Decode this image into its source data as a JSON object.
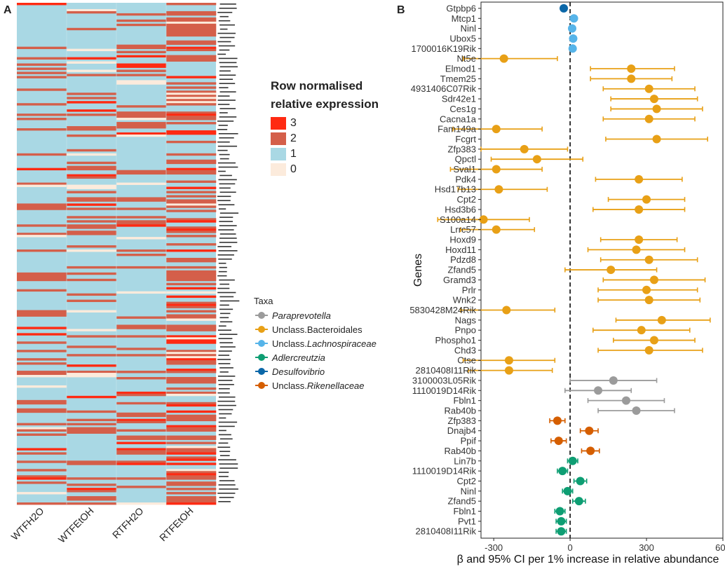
{
  "panels": {
    "a_label": "A",
    "b_label": "B"
  },
  "heatmap": {
    "columns": [
      "WTFH2O",
      "WTFEtOH",
      "RTFH2O",
      "RTFEtOH"
    ],
    "legend_title_line1": "Row normalised",
    "legend_title_line2": "relative expression",
    "legend": [
      {
        "label": "3",
        "color": "#ff2a12"
      },
      {
        "label": "2",
        "color": "#d45f4a"
      },
      {
        "label": "1",
        "color": "#a9d8e4"
      },
      {
        "label": "0",
        "color": "#fcebdc"
      }
    ]
  },
  "taxa_legend": {
    "title": "Taxa",
    "items": [
      {
        "prefix": "",
        "name": "Paraprevotella",
        "italic": true,
        "color": "#9b9b9b"
      },
      {
        "prefix": "",
        "name": "Unclass.Bacteroidales",
        "italic": false,
        "color": "#e8a016"
      },
      {
        "prefix": "Unclass.",
        "name": "Lachnospiraceae",
        "italic": true,
        "color": "#56b4e9"
      },
      {
        "prefix": "",
        "name": "Adlercreutzia",
        "italic": true,
        "color": "#0e9e73"
      },
      {
        "prefix": "",
        "name": "Desulfovibrio",
        "italic": true,
        "color": "#0b67a8"
      },
      {
        "prefix": "Unclass.",
        "name": "Rikenellaceae",
        "italic": true,
        "color": "#d55e00"
      }
    ]
  },
  "chart_data": {
    "type": "scatter",
    "title": "",
    "xlabel": "β and 95% CI per 1% increase in relative abundance",
    "ylabel": "Genes",
    "xlim": [
      -350,
      600
    ],
    "xticks": [
      -300,
      0,
      300,
      600
    ],
    "reference_line": 0,
    "taxa_colors": {
      "Paraprevotella": "#9b9b9b",
      "Unclass.Bacteroidales": "#e8a016",
      "Unclass.Lachnospiraceae": "#56b4e9",
      "Adlercreutzia": "#0e9e73",
      "Desulfovibrio": "#0b67a8",
      "Unclass.Rikenellaceae": "#d55e00"
    },
    "points": [
      {
        "gene": "Gtpbp6",
        "taxon": "Desulfovibrio",
        "beta": -25,
        "lo": -30,
        "hi": -20
      },
      {
        "gene": "Mtcp1",
        "taxon": "Unclass.Lachnospiraceae",
        "beta": 15,
        "lo": 10,
        "hi": 20
      },
      {
        "gene": "Ninl",
        "taxon": "Unclass.Lachnospiraceae",
        "beta": 8,
        "lo": 3,
        "hi": 13
      },
      {
        "gene": "Ubox5",
        "taxon": "Unclass.Lachnospiraceae",
        "beta": 12,
        "lo": 7,
        "hi": 17
      },
      {
        "gene": "1700016K19Rik",
        "taxon": "Unclass.Lachnospiraceae",
        "beta": 10,
        "lo": 5,
        "hi": 15
      },
      {
        "gene": "Nt5e",
        "taxon": "Unclass.Bacteroidales",
        "beta": -260,
        "lo": -420,
        "hi": -50
      },
      {
        "gene": "Elmod1",
        "taxon": "Unclass.Bacteroidales",
        "beta": 240,
        "lo": 80,
        "hi": 410
      },
      {
        "gene": "Tmem25",
        "taxon": "Unclass.Bacteroidales",
        "beta": 240,
        "lo": 80,
        "hi": 400
      },
      {
        "gene": "4931406C07Rik",
        "taxon": "Unclass.Bacteroidales",
        "beta": 310,
        "lo": 130,
        "hi": 490
      },
      {
        "gene": "Sdr42e1",
        "taxon": "Unclass.Bacteroidales",
        "beta": 330,
        "lo": 160,
        "hi": 500
      },
      {
        "gene": "Ces1g",
        "taxon": "Unclass.Bacteroidales",
        "beta": 340,
        "lo": 160,
        "hi": 520
      },
      {
        "gene": "Cacna1a",
        "taxon": "Unclass.Bacteroidales",
        "beta": 310,
        "lo": 130,
        "hi": 490
      },
      {
        "gene": "Fam149a",
        "taxon": "Unclass.Bacteroidales",
        "beta": -290,
        "lo": -460,
        "hi": -110
      },
      {
        "gene": "Fcgrt",
        "taxon": "Unclass.Bacteroidales",
        "beta": 340,
        "lo": 140,
        "hi": 540
      },
      {
        "gene": "Zfp383",
        "taxon": "Unclass.Bacteroidales",
        "beta": -180,
        "lo": -350,
        "hi": -10
      },
      {
        "gene": "Qpctl",
        "taxon": "Unclass.Bacteroidales",
        "beta": -130,
        "lo": -310,
        "hi": 50
      },
      {
        "gene": "Sval1",
        "taxon": "Unclass.Bacteroidales",
        "beta": -290,
        "lo": -470,
        "hi": -110
      },
      {
        "gene": "Pdk4",
        "taxon": "Unclass.Bacteroidales",
        "beta": 270,
        "lo": 100,
        "hi": 440
      },
      {
        "gene": "Hsd17b13",
        "taxon": "Unclass.Bacteroidales",
        "beta": -280,
        "lo": -440,
        "hi": -90
      },
      {
        "gene": "Cpt2",
        "taxon": "Unclass.Bacteroidales",
        "beta": 300,
        "lo": 150,
        "hi": 450
      },
      {
        "gene": "Hsd3b6",
        "taxon": "Unclass.Bacteroidales",
        "beta": 270,
        "lo": 90,
        "hi": 450
      },
      {
        "gene": "S100a14",
        "taxon": "Unclass.Bacteroidales",
        "beta": -340,
        "lo": -520,
        "hi": -160
      },
      {
        "gene": "Lrrc57",
        "taxon": "Unclass.Bacteroidales",
        "beta": -290,
        "lo": -430,
        "hi": -140
      },
      {
        "gene": "Hoxd9",
        "taxon": "Unclass.Bacteroidales",
        "beta": 270,
        "lo": 120,
        "hi": 420
      },
      {
        "gene": "Hoxd11",
        "taxon": "Unclass.Bacteroidales",
        "beta": 260,
        "lo": 70,
        "hi": 450
      },
      {
        "gene": "Pdzd8",
        "taxon": "Unclass.Bacteroidales",
        "beta": 310,
        "lo": 120,
        "hi": 500
      },
      {
        "gene": "Zfand5",
        "taxon": "Unclass.Bacteroidales",
        "beta": 160,
        "lo": -20,
        "hi": 340
      },
      {
        "gene": "Gramd3",
        "taxon": "Unclass.Bacteroidales",
        "beta": 330,
        "lo": 130,
        "hi": 530
      },
      {
        "gene": "Prlr",
        "taxon": "Unclass.Bacteroidales",
        "beta": 300,
        "lo": 110,
        "hi": 500
      },
      {
        "gene": "Wnk2",
        "taxon": "Unclass.Bacteroidales",
        "beta": 310,
        "lo": 110,
        "hi": 510
      },
      {
        "gene": "5830428M24Rik",
        "taxon": "Unclass.Bacteroidales",
        "beta": -250,
        "lo": -430,
        "hi": -60
      },
      {
        "gene": "Nags",
        "taxon": "Unclass.Bacteroidales",
        "beta": 360,
        "lo": 180,
        "hi": 550
      },
      {
        "gene": "Pnpo",
        "taxon": "Unclass.Bacteroidales",
        "beta": 280,
        "lo": 90,
        "hi": 470
      },
      {
        "gene": "Phospho1",
        "taxon": "Unclass.Bacteroidales",
        "beta": 330,
        "lo": 170,
        "hi": 490
      },
      {
        "gene": "Chd3",
        "taxon": "Unclass.Bacteroidales",
        "beta": 310,
        "lo": 110,
        "hi": 520
      },
      {
        "gene": "Ctse",
        "taxon": "Unclass.Bacteroidales",
        "beta": -240,
        "lo": -420,
        "hi": -60
      },
      {
        "gene": "2810408I11Rik",
        "taxon": "Unclass.Bacteroidales",
        "beta": -240,
        "lo": -400,
        "hi": -70
      },
      {
        "gene": "3100003L05Rik",
        "taxon": "Paraprevotella",
        "beta": 170,
        "lo": 0,
        "hi": 340
      },
      {
        "gene": "1110019D14Rik",
        "taxon": "Paraprevotella",
        "beta": 110,
        "lo": -20,
        "hi": 240
      },
      {
        "gene": "Fbln1",
        "taxon": "Paraprevotella",
        "beta": 220,
        "lo": 70,
        "hi": 370
      },
      {
        "gene": "Rab40b",
        "taxon": "Paraprevotella",
        "beta": 260,
        "lo": 110,
        "hi": 410
      },
      {
        "gene": "Zfp383",
        "taxon": "Unclass.Rikenellaceae",
        "beta": -50,
        "lo": -80,
        "hi": -20
      },
      {
        "gene": "Dnajb4",
        "taxon": "Unclass.Rikenellaceae",
        "beta": 75,
        "lo": 40,
        "hi": 110
      },
      {
        "gene": "Ppif",
        "taxon": "Unclass.Rikenellaceae",
        "beta": -45,
        "lo": -75,
        "hi": -15
      },
      {
        "gene": "Rab40b",
        "taxon": "Unclass.Rikenellaceae",
        "beta": 80,
        "lo": 45,
        "hi": 115
      },
      {
        "gene": "Lin7b",
        "taxon": "Adlercreutzia",
        "beta": 10,
        "lo": -10,
        "hi": 30
      },
      {
        "gene": "1110019D14Rik",
        "taxon": "Adlercreutzia",
        "beta": -30,
        "lo": -50,
        "hi": -10
      },
      {
        "gene": "Cpt2",
        "taxon": "Adlercreutzia",
        "beta": 40,
        "lo": 15,
        "hi": 65
      },
      {
        "gene": "Ninl",
        "taxon": "Adlercreutzia",
        "beta": -10,
        "lo": -30,
        "hi": 10
      },
      {
        "gene": "Zfand5",
        "taxon": "Adlercreutzia",
        "beta": 35,
        "lo": 10,
        "hi": 60
      },
      {
        "gene": "Fbln1",
        "taxon": "Adlercreutzia",
        "beta": -40,
        "lo": -60,
        "hi": -20
      },
      {
        "gene": "Pvt1",
        "taxon": "Adlercreutzia",
        "beta": -35,
        "lo": -55,
        "hi": -15
      },
      {
        "gene": "2810408I11Rik",
        "taxon": "Adlercreutzia",
        "beta": -35,
        "lo": -55,
        "hi": -15
      }
    ]
  }
}
